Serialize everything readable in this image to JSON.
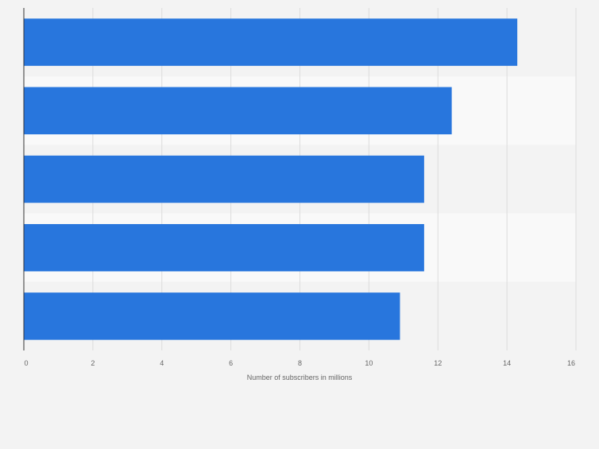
{
  "chart_data": {
    "type": "bar",
    "orientation": "horizontal",
    "categories": [
      "",
      "",
      "",
      "",
      ""
    ],
    "values": [
      14.3,
      12.4,
      11.6,
      11.6,
      10.9
    ],
    "xlabel": "Number of subscribers in millions",
    "ylabel": "",
    "xlim": [
      0,
      16
    ],
    "x_ticks": [
      0,
      2,
      4,
      6,
      8,
      10,
      12,
      14,
      16
    ],
    "grid": true,
    "bar_color": "#2876dd",
    "band_colors": [
      "#f3f3f3",
      "#f9f9f9"
    ],
    "background_color": "#f3f3f3"
  }
}
